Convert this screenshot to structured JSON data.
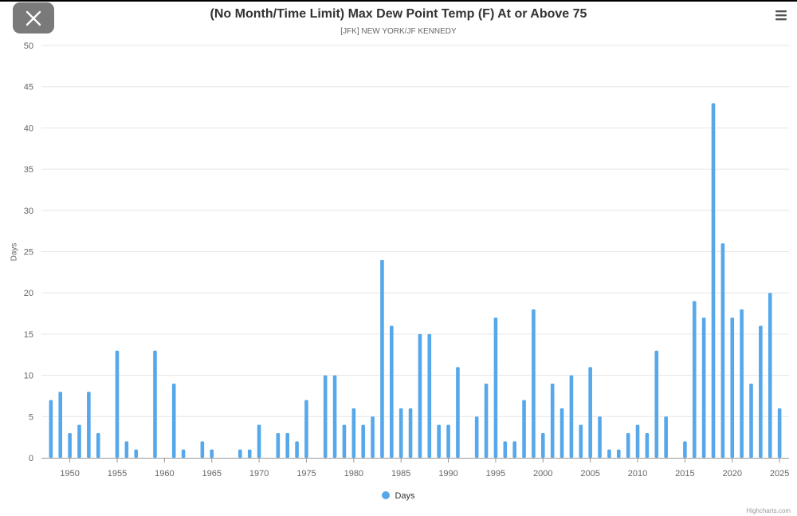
{
  "header": {
    "close_icon": "close-x-icon",
    "menu_icon": "hamburger-menu-icon"
  },
  "chart_data": {
    "type": "bar",
    "title": "(No Month/Time Limit) Max Dew Point Temp (F) At or Above 75",
    "subtitle": "[JFK] NEW YORK/JF KENNEDY",
    "ylabel": "Days",
    "xlabel": "",
    "ylim": [
      0,
      50
    ],
    "yticks": [
      0,
      5,
      10,
      15,
      20,
      25,
      30,
      35,
      40,
      45,
      50
    ],
    "xlim": [
      1947,
      2026
    ],
    "xticks": [
      1950,
      1955,
      1960,
      1965,
      1970,
      1975,
      1980,
      1985,
      1990,
      1995,
      2000,
      2005,
      2010,
      2015,
      2020,
      2025
    ],
    "grid": true,
    "legend_placement": "bottom-center",
    "credits": "Highcharts.com",
    "color": "#56a8ea",
    "series": [
      {
        "name": "Days",
        "x": [
          1948,
          1949,
          1950,
          1951,
          1952,
          1953,
          1955,
          1956,
          1957,
          1959,
          1961,
          1962,
          1964,
          1965,
          1968,
          1969,
          1970,
          1972,
          1973,
          1974,
          1975,
          1977,
          1978,
          1979,
          1980,
          1981,
          1982,
          1983,
          1984,
          1985,
          1986,
          1987,
          1988,
          1989,
          1990,
          1991,
          1993,
          1994,
          1995,
          1996,
          1997,
          1998,
          1999,
          2000,
          2001,
          2002,
          2003,
          2004,
          2005,
          2006,
          2007,
          2008,
          2009,
          2010,
          2011,
          2012,
          2013,
          2015,
          2016,
          2017,
          2018,
          2019,
          2020,
          2021,
          2022,
          2023,
          2024,
          2025
        ],
        "values": [
          7,
          8,
          3,
          4,
          8,
          3,
          13,
          2,
          1,
          13,
          9,
          1,
          2,
          1,
          1,
          1,
          4,
          3,
          3,
          2,
          7,
          10,
          10,
          4,
          6,
          4,
          5,
          24,
          16,
          6,
          6,
          15,
          15,
          4,
          4,
          11,
          5,
          9,
          17,
          2,
          2,
          7,
          18,
          3,
          9,
          6,
          10,
          4,
          11,
          5,
          1,
          1,
          3,
          4,
          3,
          13,
          5,
          2,
          19,
          17,
          43,
          26,
          17,
          18,
          9,
          16,
          20,
          6
        ]
      }
    ]
  }
}
